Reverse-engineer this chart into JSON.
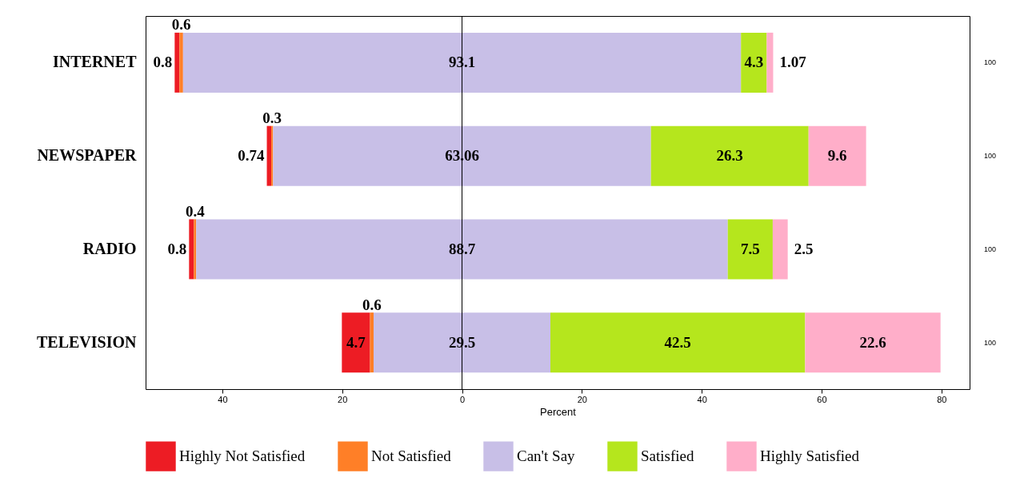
{
  "chart_data": {
    "type": "bar",
    "orientation": "horizontal",
    "xlabel": "Percent",
    "categories": [
      "INTERNET",
      "NEWSPAPER",
      "RADIO",
      "TELEVISION"
    ],
    "series": [
      {
        "name": "Highly Not Satisfied",
        "color": "#ed1c24",
        "base": [
          -47.95,
          -32.57,
          -45.55,
          -20.05
        ],
        "values": [
          0.8,
          0.74,
          0.8,
          4.7
        ]
      },
      {
        "name": "Not Satisfied",
        "color": "#ff7f27",
        "base": [
          -47.15,
          -31.83,
          -44.75,
          -15.35
        ],
        "values": [
          0.6,
          0.3,
          0.4,
          0.6
        ]
      },
      {
        "name": "Can't Say",
        "color": "#c8bfe7",
        "base": [
          -46.55,
          -31.53,
          -44.35,
          -14.75
        ],
        "values": [
          93.1,
          63.06,
          88.7,
          29.5
        ]
      },
      {
        "name": "Satisfied",
        "color": "#b5e61d",
        "base": [
          46.55,
          31.53,
          44.35,
          14.75
        ],
        "values": [
          4.3,
          26.3,
          7.5,
          42.5
        ]
      },
      {
        "name": "Highly Satisfied",
        "color": "#ffaec9",
        "base": [
          50.85,
          57.83,
          51.85,
          57.25
        ],
        "values": [
          1.07,
          9.6,
          2.5,
          22.6
        ]
      }
    ],
    "xlim": [
      -52.8,
      84.7
    ],
    "xticks": [
      {
        "value": -40,
        "label": "40"
      },
      {
        "value": -20,
        "label": "20"
      },
      0,
      20,
      40,
      60,
      80
    ],
    "ref_lines": [
      {
        "axis": "x",
        "value": 0
      }
    ],
    "annotations": [
      "100",
      "100",
      "100",
      "100"
    ],
    "data_labels": true,
    "legend": "bottom",
    "grid": false
  }
}
